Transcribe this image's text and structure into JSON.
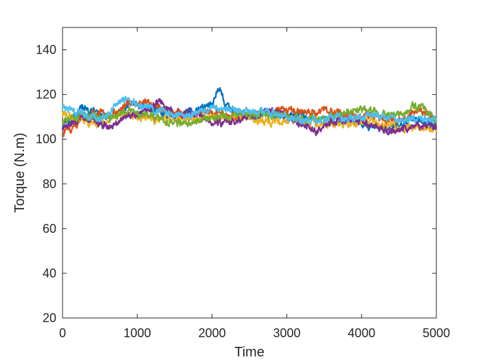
{
  "chart_data": {
    "type": "line",
    "title": "",
    "xlabel": "Time",
    "ylabel": "Torque (N.m)",
    "xlim": [
      0,
      5000
    ],
    "ylim": [
      20,
      150
    ],
    "xticks": [
      0,
      1000,
      2000,
      3000,
      4000,
      5000
    ],
    "yticks": [
      20,
      40,
      60,
      80,
      100,
      120,
      140
    ],
    "xtick_labels": [
      "0",
      "1000",
      "2000",
      "3000",
      "4000",
      "5000"
    ],
    "ytick_labels": [
      "20",
      "40",
      "60",
      "80",
      "100",
      "120",
      "140"
    ],
    "grid": false,
    "legend": "none",
    "noise_amplitude": 1.2,
    "x": [
      0,
      100,
      200,
      300,
      400,
      500,
      600,
      700,
      800,
      900,
      1000,
      1100,
      1200,
      1300,
      1400,
      1500,
      1600,
      1700,
      1800,
      1900,
      2000,
      2050,
      2100,
      2150,
      2200,
      2300,
      2400,
      2500,
      2600,
      2700,
      2800,
      2900,
      3000,
      3100,
      3200,
      3300,
      3400,
      3500,
      3600,
      3700,
      3800,
      3900,
      4000,
      4100,
      4200,
      4300,
      4400,
      4500,
      4600,
      4700,
      4800,
      4900,
      5000
    ],
    "series": [
      {
        "color": "#0072BD",
        "values": [
          106,
          108,
          112,
          114,
          113,
          111,
          110,
          111,
          113,
          115,
          116,
          115,
          113,
          112,
          111,
          110,
          111,
          112,
          113,
          114,
          116,
          121,
          123,
          118,
          115,
          113,
          112,
          111,
          111,
          112,
          111,
          110,
          110,
          110,
          111,
          110,
          109,
          109,
          108,
          108,
          108,
          107,
          107,
          106,
          106,
          105,
          105,
          106,
          108,
          109,
          108,
          107,
          106
        ]
      },
      {
        "color": "#D95319",
        "values": [
          103,
          104,
          107,
          110,
          112,
          112,
          111,
          112,
          114,
          116,
          117,
          117,
          116,
          114,
          113,
          112,
          111,
          110,
          111,
          112,
          112,
          112,
          112,
          111,
          111,
          110,
          110,
          111,
          112,
          112,
          112,
          113,
          113,
          112,
          112,
          112,
          112,
          113,
          112,
          112,
          111,
          110,
          110,
          111,
          110,
          109,
          108,
          108,
          110,
          112,
          113,
          111,
          107
        ]
      },
      {
        "color": "#EDB120",
        "values": [
          111,
          110,
          109,
          108,
          107,
          107,
          108,
          110,
          111,
          111,
          110,
          110,
          109,
          109,
          109,
          109,
          109,
          109,
          109,
          110,
          110,
          110,
          110,
          110,
          109,
          109,
          109,
          109,
          108,
          108,
          108,
          108,
          109,
          109,
          108,
          107,
          107,
          107,
          107,
          107,
          107,
          107,
          108,
          108,
          107,
          106,
          106,
          105,
          105,
          105,
          105,
          105,
          104
        ]
      },
      {
        "color": "#7E2F8E",
        "values": [
          105,
          107,
          109,
          110,
          109,
          107,
          106,
          107,
          109,
          111,
          112,
          113,
          115,
          117,
          114,
          111,
          111,
          112,
          111,
          109,
          107,
          107,
          107,
          108,
          108,
          108,
          109,
          110,
          111,
          112,
          113,
          112,
          110,
          108,
          106,
          105,
          104,
          106,
          108,
          109,
          109,
          109,
          108,
          107,
          106,
          104,
          103,
          104,
          105,
          106,
          106,
          106,
          105
        ]
      },
      {
        "color": "#77AC30",
        "values": [
          108,
          109,
          110,
          111,
          111,
          110,
          109,
          110,
          112,
          112,
          112,
          111,
          110,
          109,
          108,
          107,
          107,
          107,
          108,
          109,
          110,
          110,
          110,
          110,
          110,
          111,
          111,
          111,
          111,
          111,
          110,
          110,
          110,
          109,
          109,
          109,
          109,
          109,
          110,
          111,
          112,
          113,
          113,
          113,
          112,
          111,
          110,
          111,
          113,
          115,
          114,
          112,
          108
        ]
      },
      {
        "color": "#4DBEEE",
        "values": [
          114,
          113,
          112,
          111,
          110,
          109,
          111,
          115,
          118,
          117,
          116,
          115,
          114,
          113,
          112,
          111,
          110,
          110,
          112,
          113,
          114,
          114,
          113,
          113,
          113,
          113,
          112,
          112,
          112,
          112,
          112,
          111,
          110,
          109,
          108,
          108,
          108,
          109,
          110,
          110,
          110,
          110,
          110,
          111,
          111,
          110,
          109,
          109,
          109,
          109,
          109,
          109,
          108
        ]
      }
    ]
  }
}
